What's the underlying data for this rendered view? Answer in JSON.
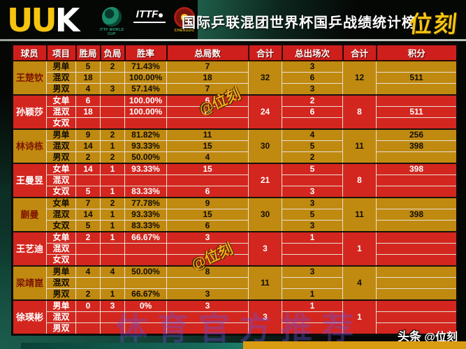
{
  "header": {
    "brand_left_letters": [
      "U",
      "U",
      "K"
    ],
    "logos": {
      "world_cup_caption": "ITTF WORLD CUP",
      "ittf_caption": "ITTF",
      "chengdu_caption": "CHENGDU"
    },
    "title": "国际乒联混团世界杯国乒战绩统计榜",
    "brand_right": "位刻"
  },
  "colors": {
    "gold_row": "#C08A10",
    "red_row": "#D3261F",
    "header_red": "#CE1F1C",
    "accent_yellow": "#F7C411",
    "teal": "#1A5947",
    "orange_bar": "#D89B12"
  },
  "table": {
    "columns": [
      "球员",
      "项目",
      "胜局",
      "负局",
      "胜率",
      "总局数",
      "合计",
      "总出场次",
      "合计",
      "积分"
    ],
    "players": [
      {
        "name": "王楚钦",
        "theme": "gold",
        "total_games": "32",
        "total_appearances": "12",
        "rows": [
          {
            "event": "男单",
            "wins": "5",
            "losses": "2",
            "rate": "71.43%",
            "games": "7",
            "appearances": "3",
            "points": ""
          },
          {
            "event": "混双",
            "wins": "18",
            "losses": "",
            "rate": "100.00%",
            "games": "18",
            "appearances": "6",
            "points": "511"
          },
          {
            "event": "男双",
            "wins": "4",
            "losses": "3",
            "rate": "57.14%",
            "games": "7",
            "appearances": "3",
            "points": ""
          }
        ]
      },
      {
        "name": "孙颖莎",
        "theme": "red",
        "total_games": "24",
        "total_appearances": "8",
        "rows": [
          {
            "event": "女单",
            "wins": "6",
            "losses": "",
            "rate": "100.00%",
            "games": "6",
            "appearances": "2",
            "points": ""
          },
          {
            "event": "混双",
            "wins": "18",
            "losses": "",
            "rate": "100.00%",
            "games": "18",
            "appearances": "6",
            "points": "511"
          },
          {
            "event": "女双",
            "wins": "",
            "losses": "",
            "rate": "",
            "games": "",
            "appearances": "",
            "points": ""
          }
        ]
      },
      {
        "name": "林诗栋",
        "theme": "gold",
        "total_games": "30",
        "total_appearances": "11",
        "rows": [
          {
            "event": "男单",
            "wins": "9",
            "losses": "2",
            "rate": "81.82%",
            "games": "11",
            "appearances": "4",
            "points": "256"
          },
          {
            "event": "混双",
            "wins": "14",
            "losses": "1",
            "rate": "93.33%",
            "games": "15",
            "appearances": "5",
            "points": "398"
          },
          {
            "event": "男双",
            "wins": "2",
            "losses": "2",
            "rate": "50.00%",
            "games": "4",
            "appearances": "2",
            "points": ""
          }
        ]
      },
      {
        "name": "王曼昱",
        "theme": "red",
        "total_games": "21",
        "total_appearances": "8",
        "rows": [
          {
            "event": "女单",
            "wins": "14",
            "losses": "1",
            "rate": "93.33%",
            "games": "15",
            "appearances": "5",
            "points": "398"
          },
          {
            "event": "混双",
            "wins": "",
            "losses": "",
            "rate": "",
            "games": "",
            "appearances": "",
            "points": ""
          },
          {
            "event": "女双",
            "wins": "5",
            "losses": "1",
            "rate": "83.33%",
            "games": "6",
            "appearances": "3",
            "points": ""
          }
        ]
      },
      {
        "name": "蒯曼",
        "theme": "gold",
        "total_games": "30",
        "total_appearances": "11",
        "rows": [
          {
            "event": "女单",
            "wins": "7",
            "losses": "2",
            "rate": "77.78%",
            "games": "9",
            "appearances": "3",
            "points": ""
          },
          {
            "event": "混双",
            "wins": "14",
            "losses": "1",
            "rate": "93.33%",
            "games": "15",
            "appearances": "5",
            "points": "398"
          },
          {
            "event": "女双",
            "wins": "5",
            "losses": "1",
            "rate": "83.33%",
            "games": "6",
            "appearances": "3",
            "points": ""
          }
        ]
      },
      {
        "name": "王艺迪",
        "theme": "red",
        "total_games": "3",
        "total_appearances": "1",
        "rows": [
          {
            "event": "女单",
            "wins": "2",
            "losses": "1",
            "rate": "66.67%",
            "games": "3",
            "appearances": "1",
            "points": ""
          },
          {
            "event": "混双",
            "wins": "",
            "losses": "",
            "rate": "",
            "games": "",
            "appearances": "",
            "points": ""
          },
          {
            "event": "女双",
            "wins": "",
            "losses": "",
            "rate": "",
            "games": "",
            "appearances": "",
            "points": ""
          }
        ]
      },
      {
        "name": "梁靖崑",
        "theme": "gold",
        "total_games": "11",
        "total_appearances": "4",
        "rows": [
          {
            "event": "男单",
            "wins": "4",
            "losses": "4",
            "rate": "50.00%",
            "games": "8",
            "appearances": "3",
            "points": ""
          },
          {
            "event": "混双",
            "wins": "",
            "losses": "",
            "rate": "",
            "games": "",
            "appearances": "",
            "points": ""
          },
          {
            "event": "男双",
            "wins": "2",
            "losses": "1",
            "rate": "66.67%",
            "games": "3",
            "appearances": "1",
            "points": ""
          }
        ]
      },
      {
        "name": "徐瑛彬",
        "theme": "red",
        "total_games": "3",
        "total_appearances": "1",
        "rows": [
          {
            "event": "男单",
            "wins": "0",
            "losses": "3",
            "rate": "0%",
            "games": "3",
            "appearances": "1",
            "points": ""
          },
          {
            "event": "混双",
            "wins": "",
            "losses": "",
            "rate": "",
            "games": "",
            "appearances": "",
            "points": ""
          },
          {
            "event": "男双",
            "wins": "",
            "losses": "",
            "rate": "",
            "games": "",
            "appearances": "",
            "points": ""
          }
        ]
      }
    ]
  },
  "watermarks": {
    "stamp1": "@位刻",
    "stamp2": "@位刻",
    "big": "体育官方推荐"
  },
  "footer": {
    "brand": "头条",
    "handle": "@位刻"
  }
}
